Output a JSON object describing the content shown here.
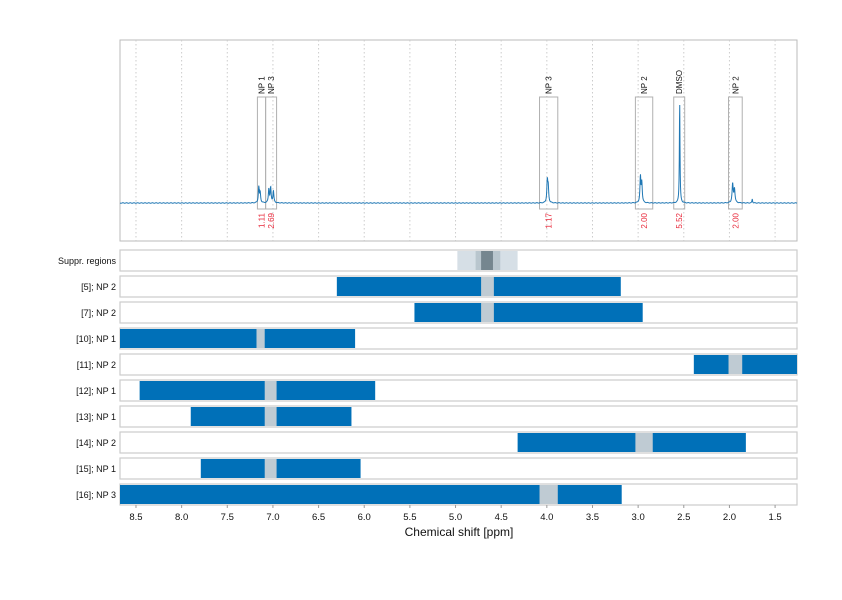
{
  "chart_data": {
    "type": "line",
    "xlabel": "Chemical shift [ppm]",
    "xlim": [
      8.675,
      1.26
    ],
    "x_reversed": true,
    "grid": "vertical dotted",
    "xticks": [
      "8.5",
      "8.0",
      "7.5",
      "7.0",
      "6.5",
      "6.0",
      "5.5",
      "5.0",
      "4.5",
      "4.0",
      "3.5",
      "3.0",
      "2.5",
      "2.0",
      "1.5"
    ],
    "colors": {
      "spectrum": "#1f77b4",
      "bars": "#0070b8",
      "gap": "#bfcbd3",
      "integral_text": "#e8283a",
      "box": "#b0b0b0"
    },
    "spectrum_peaks": [
      {
        "ppm": 7.155,
        "height": 16,
        "width": 0.006
      },
      {
        "ppm": 7.14,
        "height": 10,
        "width": 0.006
      },
      {
        "ppm": 7.045,
        "height": 14,
        "width": 0.006
      },
      {
        "ppm": 7.025,
        "height": 15,
        "width": 0.006
      },
      {
        "ppm": 6.995,
        "height": 12,
        "width": 0.006
      },
      {
        "ppm": 3.995,
        "height": 22,
        "width": 0.006
      },
      {
        "ppm": 3.985,
        "height": 15,
        "width": 0.006
      },
      {
        "ppm": 2.975,
        "height": 26,
        "width": 0.006
      },
      {
        "ppm": 2.96,
        "height": 20,
        "width": 0.006
      },
      {
        "ppm": 2.545,
        "height": 102,
        "width": 0.004
      },
      {
        "ppm": 1.965,
        "height": 19,
        "width": 0.007
      },
      {
        "ppm": 1.945,
        "height": 14,
        "width": 0.007
      },
      {
        "ppm": 1.75,
        "height": 4,
        "width": 0.004
      }
    ],
    "annotations": [
      {
        "label": "NP 1",
        "from": 7.17,
        "to": 7.08,
        "integral": "1.11"
      },
      {
        "label": "NP 3",
        "from": 7.08,
        "to": 6.96,
        "integral": "2.69"
      },
      {
        "label": "NP 3",
        "from": 4.08,
        "to": 3.88,
        "integral": "1.17"
      },
      {
        "label": "NP 2",
        "from": 3.03,
        "to": 2.84,
        "integral": "2.00"
      },
      {
        "label": "DMSO",
        "from": 2.61,
        "to": 2.49,
        "integral": "5.52"
      },
      {
        "label": "NP 2",
        "from": 2.01,
        "to": 1.86,
        "integral": "2.00"
      }
    ],
    "suppression": {
      "label": "Suppr. regions",
      "layers": [
        {
          "from": 4.98,
          "to": 4.32,
          "color": "#d6dfe6"
        },
        {
          "from": 4.78,
          "to": 4.51,
          "color": "#b9c6ce"
        },
        {
          "from": 4.72,
          "to": 4.59,
          "color": "#75868f"
        }
      ]
    },
    "rows": [
      {
        "label": "[5]; NP 2",
        "from": 6.3,
        "to": 3.19,
        "gap": [
          4.72,
          4.58
        ]
      },
      {
        "label": "[7]; NP 2",
        "from": 5.45,
        "to": 2.95,
        "gap": [
          4.72,
          4.58
        ]
      },
      {
        "label": "[10]; NP 1",
        "from": 8.675,
        "to": 6.1,
        "gap": [
          7.18,
          7.09
        ]
      },
      {
        "label": "[11]; NP 2",
        "from": 2.39,
        "to": 1.26,
        "gap": [
          2.01,
          1.86
        ]
      },
      {
        "label": "[12]; NP 1",
        "from": 8.46,
        "to": 5.88,
        "gap": [
          7.09,
          6.96
        ]
      },
      {
        "label": "[13]; NP 1",
        "from": 7.9,
        "to": 6.14,
        "gap": [
          7.09,
          6.96
        ]
      },
      {
        "label": "[14]; NP 2",
        "from": 4.32,
        "to": 1.82,
        "gap": [
          3.03,
          2.84
        ]
      },
      {
        "label": "[15]; NP 1",
        "from": 7.79,
        "to": 6.04,
        "gap": [
          7.09,
          6.96
        ]
      },
      {
        "label": "[16]; NP 3",
        "from": 8.675,
        "to": 3.18,
        "gap": [
          4.08,
          3.88
        ]
      }
    ]
  }
}
